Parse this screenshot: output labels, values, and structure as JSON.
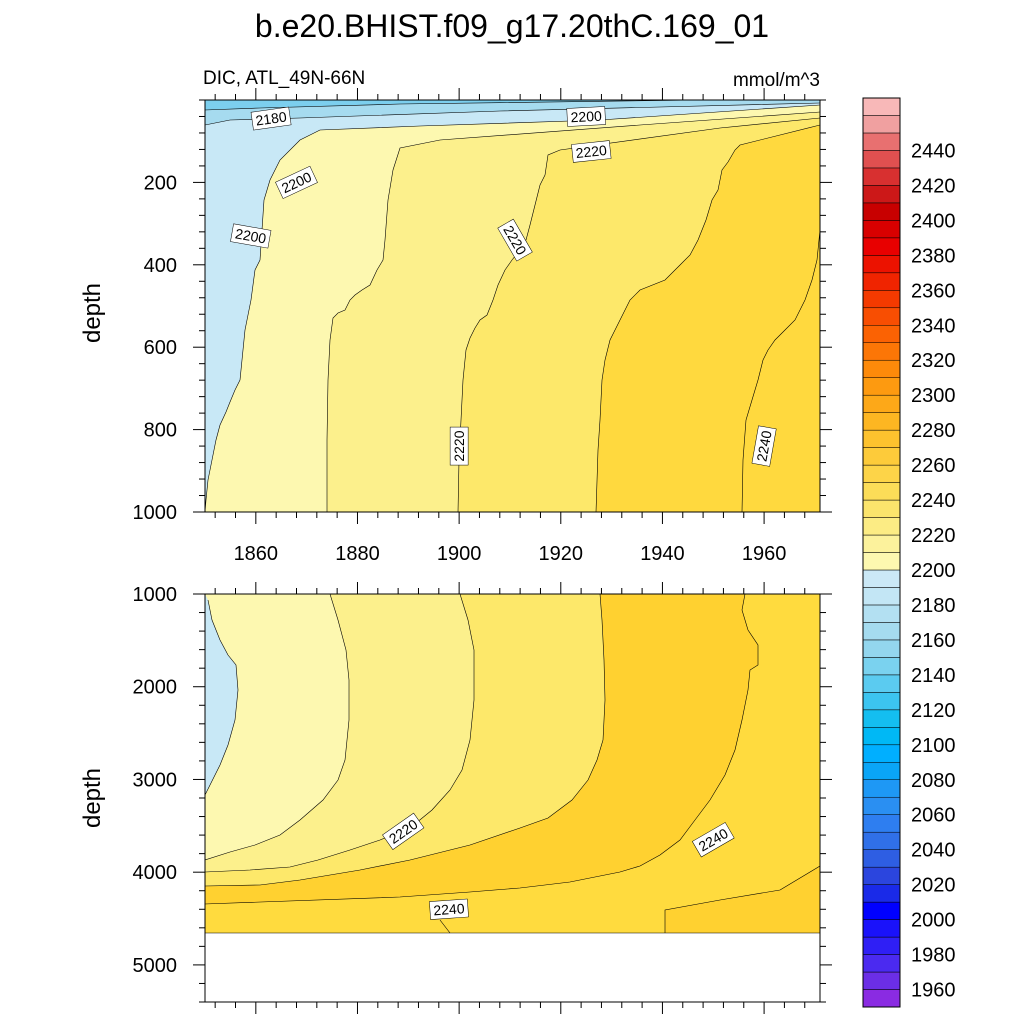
{
  "title": "b.e20.BHIST.f09_g17.20thC.169_01",
  "chart_data": {
    "type": "heatmap",
    "title": "b.e20.BHIST.f09_g17.20thC.169_01",
    "variable_label": "DIC, ATL_49N-66N",
    "units_label": "mmol/m^3",
    "xlim": [
      1850,
      1971
    ],
    "x_ticks": [
      1860,
      1880,
      1900,
      1920,
      1940,
      1960
    ],
    "x_tick_labels": [
      "1860",
      "1880",
      "1900",
      "1920",
      "1940",
      "1960"
    ],
    "panels": [
      {
        "name": "upper",
        "ylabel": "depth",
        "ylim": [
          0,
          1000
        ],
        "y_ticks": [
          200,
          400,
          600,
          800,
          1000
        ],
        "y_tick_labels": [
          "200",
          "400",
          "600",
          "800",
          "1000"
        ],
        "contour_labels": [
          {
            "text": "2180",
            "x": 1863,
            "y": 45,
            "angle": -8
          },
          {
            "text": "2200",
            "x": 1925,
            "y": 40,
            "angle": -3
          },
          {
            "text": "2200",
            "x": 1868,
            "y": 200,
            "angle": -25
          },
          {
            "text": "2200",
            "x": 1859,
            "y": 330,
            "angle": 10
          },
          {
            "text": "2220",
            "x": 1926,
            "y": 125,
            "angle": -6
          },
          {
            "text": "2220",
            "x": 1911,
            "y": 340,
            "angle": 60
          },
          {
            "text": "2220",
            "x": 1900,
            "y": 840,
            "angle": -90
          },
          {
            "text": "2240",
            "x": 1960,
            "y": 840,
            "angle": -80
          }
        ]
      },
      {
        "name": "lower",
        "ylabel": "depth",
        "ylim": [
          1000,
          5400
        ],
        "y_ticks": [
          1000,
          2000,
          3000,
          4000,
          5000
        ],
        "y_tick_labels": [
          "1000",
          "2000",
          "3000",
          "4000",
          "5000"
        ],
        "data_bottom_depth": 4630,
        "contour_labels": [
          {
            "text": "2220",
            "x": 1889,
            "y": 3560,
            "angle": -35
          },
          {
            "text": "2240",
            "x": 1898,
            "y": 4400,
            "angle": -4
          },
          {
            "text": "2240",
            "x": 1950,
            "y": 3650,
            "angle": -30
          }
        ]
      }
    ],
    "colorbar": {
      "levels": [
        1950,
        1960,
        1970,
        1980,
        1990,
        2000,
        2010,
        2020,
        2030,
        2040,
        2050,
        2060,
        2070,
        2080,
        2090,
        2100,
        2110,
        2120,
        2130,
        2140,
        2150,
        2160,
        2170,
        2180,
        2190,
        2200,
        2210,
        2220,
        2230,
        2240,
        2250,
        2260,
        2270,
        2280,
        2290,
        2300,
        2310,
        2320,
        2330,
        2340,
        2350,
        2360,
        2370,
        2380,
        2390,
        2400,
        2410,
        2420,
        2430,
        2440,
        2450,
        2460
      ],
      "colors": [
        "#8a2be2",
        "#6b2ee6",
        "#4b2af0",
        "#2f1ff5",
        "#1a12fa",
        "#0000ff",
        "#1a2ae8",
        "#2b45de",
        "#2e5ee3",
        "#3070e8",
        "#2e7ef0",
        "#2a8ff2",
        "#1e98f5",
        "#0aa5f7",
        "#00afff",
        "#00b8f5",
        "#14bef0",
        "#3cc4f0",
        "#5bcbf0",
        "#7ad2ef",
        "#93d6ee",
        "#a5dbef",
        "#b3e0f2",
        "#c3e6f5",
        "#cbe8f6",
        "#fdf8b0",
        "#fcf29c",
        "#fcec84",
        "#fbe46c",
        "#fcdd58",
        "#fdd448",
        "#fdcb3a",
        "#fdc22e",
        "#fdb622",
        "#fda818",
        "#fd9a10",
        "#fd8a0a",
        "#fc7606",
        "#fb6203",
        "#f84e02",
        "#f43a00",
        "#f02400",
        "#ec1200",
        "#e80000",
        "#d80000",
        "#c80000",
        "#cc1818",
        "#d83030",
        "#e05050",
        "#e87070",
        "#f0a0a0",
        "#f8b8b8"
      ],
      "tick_labels": [
        "1960",
        "1980",
        "2000",
        "2020",
        "2040",
        "2060",
        "2080",
        "2100",
        "2120",
        "2140",
        "2160",
        "2180",
        "2200",
        "2220",
        "2240",
        "2260",
        "2280",
        "2300",
        "2320",
        "2340",
        "2360",
        "2380",
        "2400",
        "2420",
        "2440"
      ]
    }
  }
}
